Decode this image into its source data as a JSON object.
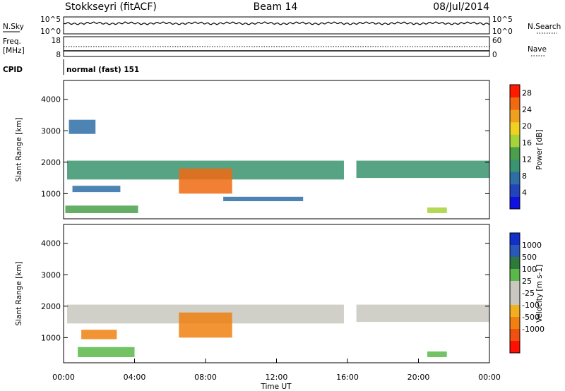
{
  "header": {
    "radar": "Stokkseyri (fitACF)",
    "beam": "Beam 14",
    "date": "08/Jul/2014"
  },
  "noise_panel": {
    "left_label": "N.Sky",
    "right_label": "N.Search",
    "left_ticks": [
      "10^5",
      "10^0"
    ],
    "right_ticks": [
      "10^5",
      "10^0"
    ]
  },
  "freq_panel": {
    "left_label_line1": "Freq.",
    "left_label_line2": "[MHz]",
    "right_label": "Nave",
    "left_ticks": [
      "18",
      "8"
    ],
    "right_ticks": [
      "60",
      "0"
    ]
  },
  "cpid_panel": {
    "label": "CPID",
    "value": "normal (fast) 151"
  },
  "colors": {
    "power_scale": [
      "#1010e0",
      "#2244bb",
      "#2e6ea6",
      "#3a9470",
      "#4aa04a",
      "#a6d23a",
      "#f0d020",
      "#f0a020",
      "#f06a10",
      "#ff1a00"
    ],
    "velocity_scale": [
      "#1030c8",
      "#2a58b8",
      "#2e7a3a",
      "#5ab84a",
      "#c8c8c0",
      "#c8c8c0",
      "#f0b020",
      "#f08010",
      "#f05010",
      "#ff1000"
    ]
  },
  "chart_data": [
    {
      "type": "heatmap",
      "name": "power",
      "ylabel": "Slant Range [km]",
      "xlabel": "",
      "y_ticks": [
        "1000",
        "2000",
        "3000",
        "4000"
      ],
      "ylim": [
        200,
        4600
      ],
      "colorbar_label": "Power [dB]",
      "colorbar_ticks": [
        "4",
        "8",
        "12",
        "16",
        "20",
        "24",
        "28"
      ],
      "colorbar_range": [
        0,
        30
      ],
      "regions": [
        {
          "t": [
            0.2,
            15.8
          ],
          "r": [
            1450,
            2050
          ],
          "v": 10
        },
        {
          "t": [
            6.5,
            9.5
          ],
          "r": [
            1000,
            1800
          ],
          "v": 26
        },
        {
          "t": [
            0.1,
            4.2
          ],
          "r": [
            380,
            620
          ],
          "v": 14
        },
        {
          "t": [
            0.3,
            1.8
          ],
          "r": [
            2900,
            3350
          ],
          "v": 7
        },
        {
          "t": [
            16.5,
            24.0
          ],
          "r": [
            1500,
            2050
          ],
          "v": 11
        },
        {
          "t": [
            20.5,
            21.6
          ],
          "r": [
            380,
            560
          ],
          "v": 17
        },
        {
          "t": [
            9.0,
            13.5
          ],
          "r": [
            760,
            900
          ],
          "v": 6
        },
        {
          "t": [
            0.5,
            3.2
          ],
          "r": [
            1050,
            1250
          ],
          "v": 8
        }
      ]
    },
    {
      "type": "heatmap",
      "name": "velocity",
      "ylabel": "Slant Range [km]",
      "xlabel": "Time UT",
      "x_ticks": [
        "00:00",
        "04:00",
        "08:00",
        "12:00",
        "16:00",
        "20:00",
        "00:00"
      ],
      "xlim": [
        0,
        24
      ],
      "y_ticks": [
        "1000",
        "2000",
        "3000",
        "4000"
      ],
      "ylim": [
        200,
        4600
      ],
      "colorbar_label": "Velocity [m s-1]",
      "colorbar_ticks": [
        "1000",
        "500",
        "100",
        "25",
        "-25",
        "-100",
        "-500",
        "-1000"
      ],
      "regions": [
        {
          "t": [
            0.2,
            15.8
          ],
          "r": [
            1450,
            2050
          ],
          "v": 0
        },
        {
          "t": [
            6.5,
            9.5
          ],
          "r": [
            1000,
            1800
          ],
          "v": -300
        },
        {
          "t": [
            1.0,
            3.0
          ],
          "r": [
            950,
            1250
          ],
          "v": -400
        },
        {
          "t": [
            0.8,
            4.0
          ],
          "r": [
            380,
            700
          ],
          "v": 200
        },
        {
          "t": [
            16.5,
            24.0
          ],
          "r": [
            1500,
            2050
          ],
          "v": 0
        },
        {
          "t": [
            20.5,
            21.6
          ],
          "r": [
            380,
            560
          ],
          "v": 120
        }
      ]
    }
  ]
}
